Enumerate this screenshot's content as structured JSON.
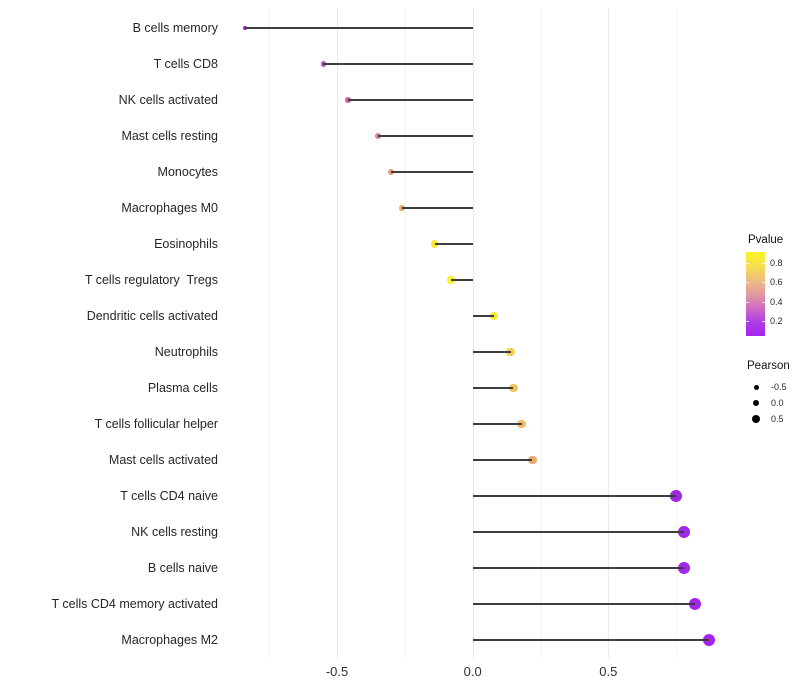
{
  "chart_data": {
    "type": "lollipop",
    "title": "",
    "xlabel": "",
    "ylabel": "",
    "xlim": [
      -0.92,
      0.96
    ],
    "x_ticks": [
      -0.5,
      0.0,
      0.5
    ],
    "x_tick_labels": [
      "-0.5",
      "0.0",
      "0.5"
    ],
    "x_minor_gridlines": [
      -0.75,
      -0.25,
      0.25,
      0.75
    ],
    "grid": "vertical major and minor gridlines, light gray on white, no axis lines or ticks",
    "legend_position": "right",
    "categories": [
      "B cells memory",
      "T cells CD8",
      "NK cells activated",
      "Mast cells resting",
      "Monocytes",
      "Macrophages M0",
      "Eosinophils",
      "T cells regulatory  Tregs",
      "Dendritic cells activated",
      "Neutrophils",
      "Plasma cells",
      "T cells follicular helper",
      "Mast cells activated",
      "T cells CD4 naive",
      "NK cells resting",
      "B cells naive",
      "T cells CD4 memory activated",
      "Macrophages M2"
    ],
    "points": [
      {
        "label": "B cells memory",
        "pearson": -0.84,
        "pvalue_approx": 0.01,
        "color": "#9C2BDB"
      },
      {
        "label": "T cells CD8",
        "pearson": -0.55,
        "pvalue_approx": 0.22,
        "color": "#BF50CB"
      },
      {
        "label": "NK cells activated",
        "pearson": -0.46,
        "pvalue_approx": 0.33,
        "color": "#C767B5"
      },
      {
        "label": "Mast cells resting",
        "pearson": -0.35,
        "pvalue_approx": 0.46,
        "color": "#D5808F"
      },
      {
        "label": "Monocytes",
        "pearson": -0.3,
        "pvalue_approx": 0.55,
        "color": "#E49B7B"
      },
      {
        "label": "Macrophages M0",
        "pearson": -0.26,
        "pvalue_approx": 0.62,
        "color": "#EDA965"
      },
      {
        "label": "Eosinophils",
        "pearson": -0.14,
        "pvalue_approx": 0.82,
        "color": "#F4E92E"
      },
      {
        "label": "T cells regulatory  Tregs",
        "pearson": -0.08,
        "pvalue_approx": 0.87,
        "color": "#FBF228"
      },
      {
        "label": "Dendritic cells activated",
        "pearson": 0.08,
        "pvalue_approx": 0.83,
        "color": "#F7E731"
      },
      {
        "label": "Neutrophils",
        "pearson": 0.14,
        "pvalue_approx": 0.73,
        "color": "#F1CF52"
      },
      {
        "label": "Plasma cells",
        "pearson": 0.15,
        "pvalue_approx": 0.68,
        "color": "#EFC35D"
      },
      {
        "label": "T cells follicular helper",
        "pearson": 0.18,
        "pvalue_approx": 0.64,
        "color": "#EDBA66"
      },
      {
        "label": "Mast cells activated",
        "pearson": 0.22,
        "pvalue_approx": 0.58,
        "color": "#EAAB71"
      },
      {
        "label": "T cells CD4 naive",
        "pearson": 0.75,
        "pvalue_approx": 0.02,
        "color": "#9D2BDC"
      },
      {
        "label": "NK cells resting",
        "pearson": 0.78,
        "pvalue_approx": 0.01,
        "color": "#A02AE2"
      },
      {
        "label": "B cells naive",
        "pearson": 0.78,
        "pvalue_approx": 0.01,
        "color": "#A129E5"
      },
      {
        "label": "T cells CD4 memory activated",
        "pearson": 0.82,
        "pvalue_approx": 0.005,
        "color": "#A227EA"
      },
      {
        "label": "Macrophages M2",
        "pearson": 0.87,
        "pvalue_approx": 0.003,
        "color": "#A325EF"
      }
    ]
  },
  "legend": {
    "pvalue": {
      "title": "Pvalue",
      "ticks": [
        "0.8",
        "0.6",
        "0.4",
        "0.2"
      ],
      "gradient_stops": [
        "#FBF326",
        "#F6DE4F",
        "#EFBD7E",
        "#E39AA0",
        "#CE6DC2",
        "#B23BE6",
        "#A326F2"
      ],
      "range_top_to_bottom": [
        0.9,
        0.05
      ]
    },
    "pearson": {
      "title": "Pearson",
      "sizes": [
        {
          "label": "-0.5"
        },
        {
          "label": "0.0"
        },
        {
          "label": "0.5"
        }
      ],
      "dot_color": "#000000"
    }
  }
}
